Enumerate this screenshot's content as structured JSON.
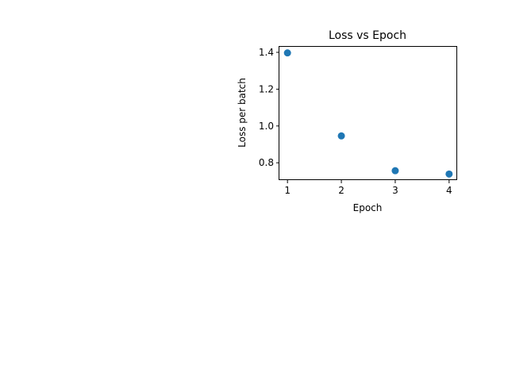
{
  "chart_data": {
    "type": "scatter",
    "title": "Loss vs Epoch",
    "xlabel": "Epoch",
    "ylabel": "Loss per batch",
    "x": [
      1,
      2,
      3,
      4
    ],
    "y": [
      1.397,
      0.946,
      0.757,
      0.739
    ],
    "xlim": [
      0.85,
      4.15
    ],
    "ylim": [
      0.706,
      1.43
    ],
    "xticks": [
      1,
      2,
      3,
      4
    ],
    "xtick_labels": [
      "1",
      "2",
      "3",
      "4"
    ],
    "yticks": [
      0.8,
      1.0,
      1.2,
      1.4
    ],
    "ytick_labels": [
      "0.8",
      "1.0",
      "1.2",
      "1.4"
    ],
    "marker_color": "#1f77b4",
    "grid": false,
    "legend": false
  }
}
